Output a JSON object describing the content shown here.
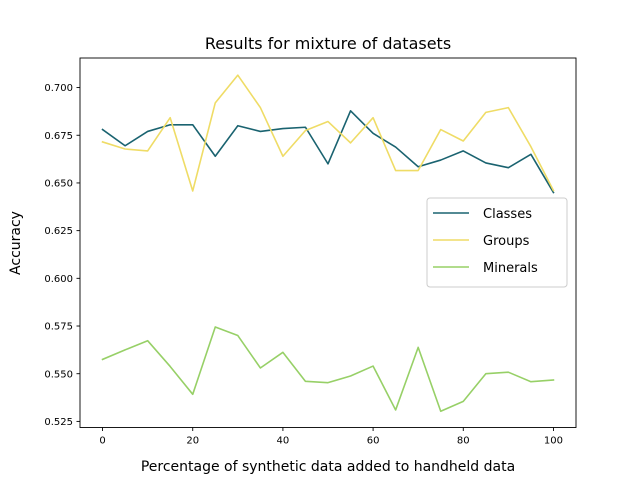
{
  "chart_data": {
    "type": "line",
    "title": "Results for mixture of datasets",
    "xlabel": "Percentage of synthetic data added to handheld data",
    "ylabel": "Accuracy",
    "xlim": [
      -5,
      105
    ],
    "ylim": [
      0.5218,
      0.7155
    ],
    "x_ticks": [
      0,
      20,
      40,
      60,
      80,
      100
    ],
    "x_tick_labels": [
      "0",
      "20",
      "40",
      "60",
      "80",
      "100"
    ],
    "y_ticks": [
      0.525,
      0.55,
      0.575,
      0.6,
      0.625,
      0.65,
      0.675,
      0.7
    ],
    "y_tick_labels": [
      "0.525",
      "0.550",
      "0.575",
      "0.600",
      "0.625",
      "0.650",
      "0.675",
      "0.700"
    ],
    "legend_position": "center-right",
    "grid": false,
    "x": [
      0,
      5,
      10,
      15,
      20,
      25,
      30,
      35,
      40,
      45,
      50,
      55,
      60,
      65,
      70,
      75,
      80,
      85,
      90,
      95,
      100
    ],
    "series": [
      {
        "name": "Classes",
        "color": "#1a6370",
        "values": [
          0.678,
          0.6695,
          0.677,
          0.6805,
          0.6805,
          0.664,
          0.68,
          0.677,
          0.6785,
          0.6792,
          0.66,
          0.6878,
          0.676,
          0.6688,
          0.6585,
          0.662,
          0.6668,
          0.6605,
          0.658,
          0.665,
          0.645
        ]
      },
      {
        "name": "Groups",
        "color": "#efdc66",
        "values": [
          0.6715,
          0.6678,
          0.6668,
          0.6842,
          0.6458,
          0.692,
          0.7065,
          0.6895,
          0.664,
          0.6775,
          0.6822,
          0.671,
          0.6842,
          0.6565,
          0.6565,
          0.678,
          0.672,
          0.687,
          0.6895,
          0.669,
          0.646
        ]
      },
      {
        "name": "Minerals",
        "color": "#97d067",
        "values": [
          0.5575,
          0.5625,
          0.5673,
          0.5538,
          0.5392,
          0.5745,
          0.57,
          0.553,
          0.5612,
          0.546,
          0.5453,
          0.5488,
          0.554,
          0.531,
          0.5638,
          0.5303,
          0.5355,
          0.55,
          0.5508,
          0.5458,
          0.5467
        ]
      }
    ]
  }
}
